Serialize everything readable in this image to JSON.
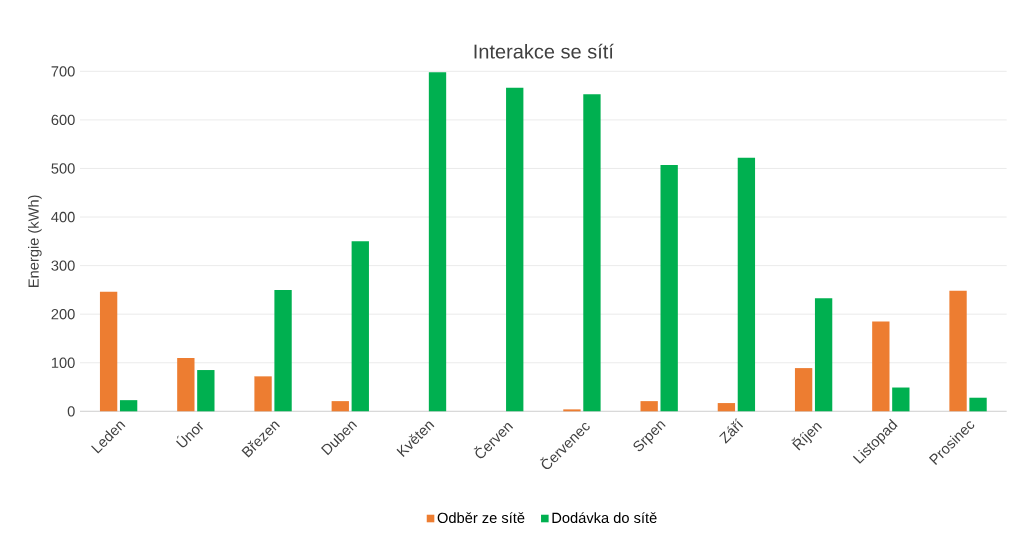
{
  "chart_data": {
    "type": "bar",
    "title": "Interakce se sítí",
    "ylabel": "Energie (kWh)",
    "categories": [
      "Leden",
      "Únor",
      "Březen",
      "Duben",
      "Květen",
      "Červen",
      "Červenec",
      "Srpen",
      "Září",
      "Říjen",
      "Listopad",
      "Prosinec"
    ],
    "series": [
      {
        "name": "Odběr ze sítě",
        "color": "#ed7d31",
        "values": [
          246,
          110,
          72,
          21,
          0,
          0,
          4,
          21,
          17,
          89,
          185,
          248
        ]
      },
      {
        "name": "Dodávka do sítě",
        "color": "#00b050",
        "values": [
          23,
          85,
          250,
          350,
          698,
          666,
          653,
          507,
          522,
          233,
          49,
          28
        ]
      }
    ],
    "ylim": [
      0,
      700
    ],
    "yticks": [
      0,
      100,
      200,
      300,
      400,
      500,
      600,
      700
    ],
    "grid": "y",
    "legend": "bottom"
  }
}
